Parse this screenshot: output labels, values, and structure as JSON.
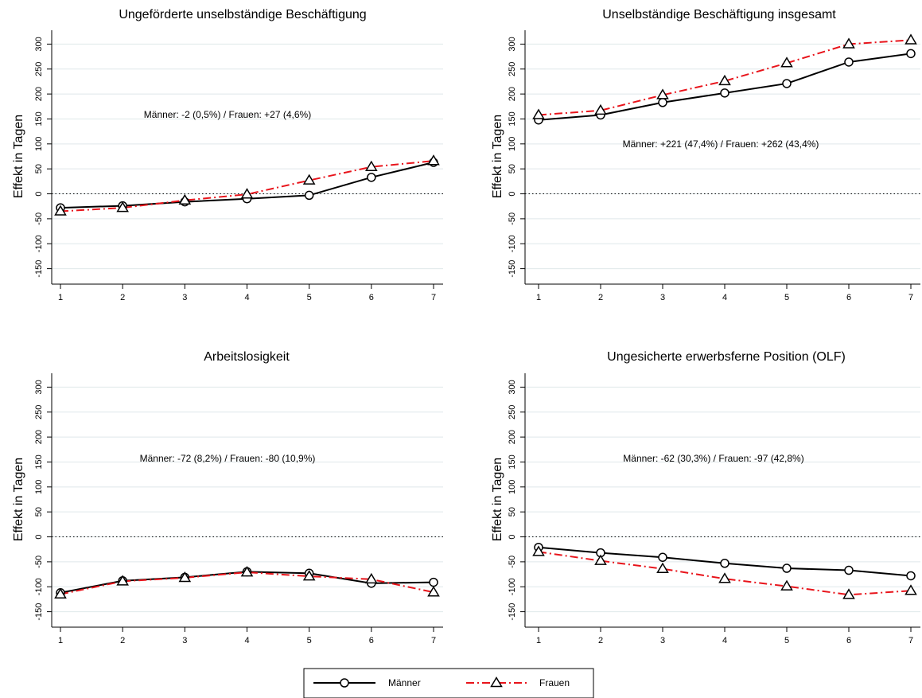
{
  "chart_data": [
    {
      "type": "line",
      "title": "Ungeförderte unselbständige Beschäftigung",
      "xlabel": "",
      "ylabel": "Effekt in Tagen",
      "x": [
        1,
        2,
        3,
        4,
        5,
        6,
        7
      ],
      "ylim": [
        -165,
        315
      ],
      "yticks": [
        -150,
        -100,
        -50,
        0,
        50,
        100,
        150,
        200,
        250,
        300
      ],
      "grid": true,
      "zero_line": true,
      "annotation": "Männer: -2 (0,5%) / Frauen: +27 (4,6%)",
      "series": [
        {
          "name": "Männer",
          "values": [
            -28,
            -24,
            -16,
            -10,
            -3,
            33,
            63
          ]
        },
        {
          "name": "Frauen",
          "values": [
            -35,
            -28,
            -13,
            -1,
            27,
            54,
            66
          ]
        }
      ]
    },
    {
      "type": "line",
      "title": "Unselbständige Beschäftigung insgesamt",
      "xlabel": "",
      "ylabel": "Effekt in Tagen",
      "x": [
        1,
        2,
        3,
        4,
        5,
        6,
        7
      ],
      "ylim": [
        -165,
        315
      ],
      "yticks": [
        -150,
        -100,
        -50,
        0,
        50,
        100,
        150,
        200,
        250,
        300
      ],
      "grid": true,
      "zero_line": true,
      "annotation": "Männer: +221 (47,4%) / Frauen: +262 (43,4%)",
      "series": [
        {
          "name": "Männer",
          "values": [
            148,
            158,
            183,
            202,
            221,
            264,
            281
          ]
        },
        {
          "name": "Frauen",
          "values": [
            158,
            167,
            198,
            226,
            262,
            300,
            308
          ]
        }
      ]
    },
    {
      "type": "line",
      "title": "Arbeitslosigkeit",
      "xlabel": "",
      "ylabel": "Effekt in Tagen",
      "x": [
        1,
        2,
        3,
        4,
        5,
        6,
        7
      ],
      "ylim": [
        -165,
        315
      ],
      "yticks": [
        -150,
        -100,
        -50,
        0,
        50,
        100,
        150,
        200,
        250,
        300
      ],
      "grid": true,
      "zero_line": true,
      "annotation": "Männer: -72 (8,2%) / Frauen: -80 (10,9%)",
      "series": [
        {
          "name": "Männer",
          "values": [
            -112,
            -88,
            -81,
            -70,
            -73,
            -93,
            -91
          ]
        },
        {
          "name": "Frauen",
          "values": [
            -115,
            -89,
            -82,
            -71,
            -79,
            -85,
            -111
          ]
        }
      ]
    },
    {
      "type": "line",
      "title": "Ungesicherte erwerbsferne Position (OLF)",
      "xlabel": "",
      "ylabel": "Effekt in Tagen",
      "x": [
        1,
        2,
        3,
        4,
        5,
        6,
        7
      ],
      "ylim": [
        -165,
        315
      ],
      "yticks": [
        -150,
        -100,
        -50,
        0,
        50,
        100,
        150,
        200,
        250,
        300
      ],
      "grid": true,
      "zero_line": true,
      "annotation": "Männer: -62 (30,3%) / Frauen: -97 (42,8%)",
      "series": [
        {
          "name": "Männer",
          "values": [
            -21,
            -32,
            -41,
            -53,
            -63,
            -67,
            -78
          ]
        },
        {
          "name": "Frauen",
          "values": [
            -30,
            -48,
            -64,
            -84,
            -99,
            -116,
            -108
          ]
        }
      ]
    }
  ],
  "legend": {
    "placement": "bottom-center",
    "items": [
      {
        "label": "Männer",
        "color": "#000000",
        "marker": "circle",
        "line": "solid"
      },
      {
        "label": "Frauen",
        "color": "#e8141b",
        "marker": "triangle",
        "line": "dash-dot"
      }
    ]
  },
  "colors": {
    "maenner": "#000000",
    "frauen": "#e8141b",
    "grid": "#dfe8ea",
    "axis": "#000000"
  }
}
